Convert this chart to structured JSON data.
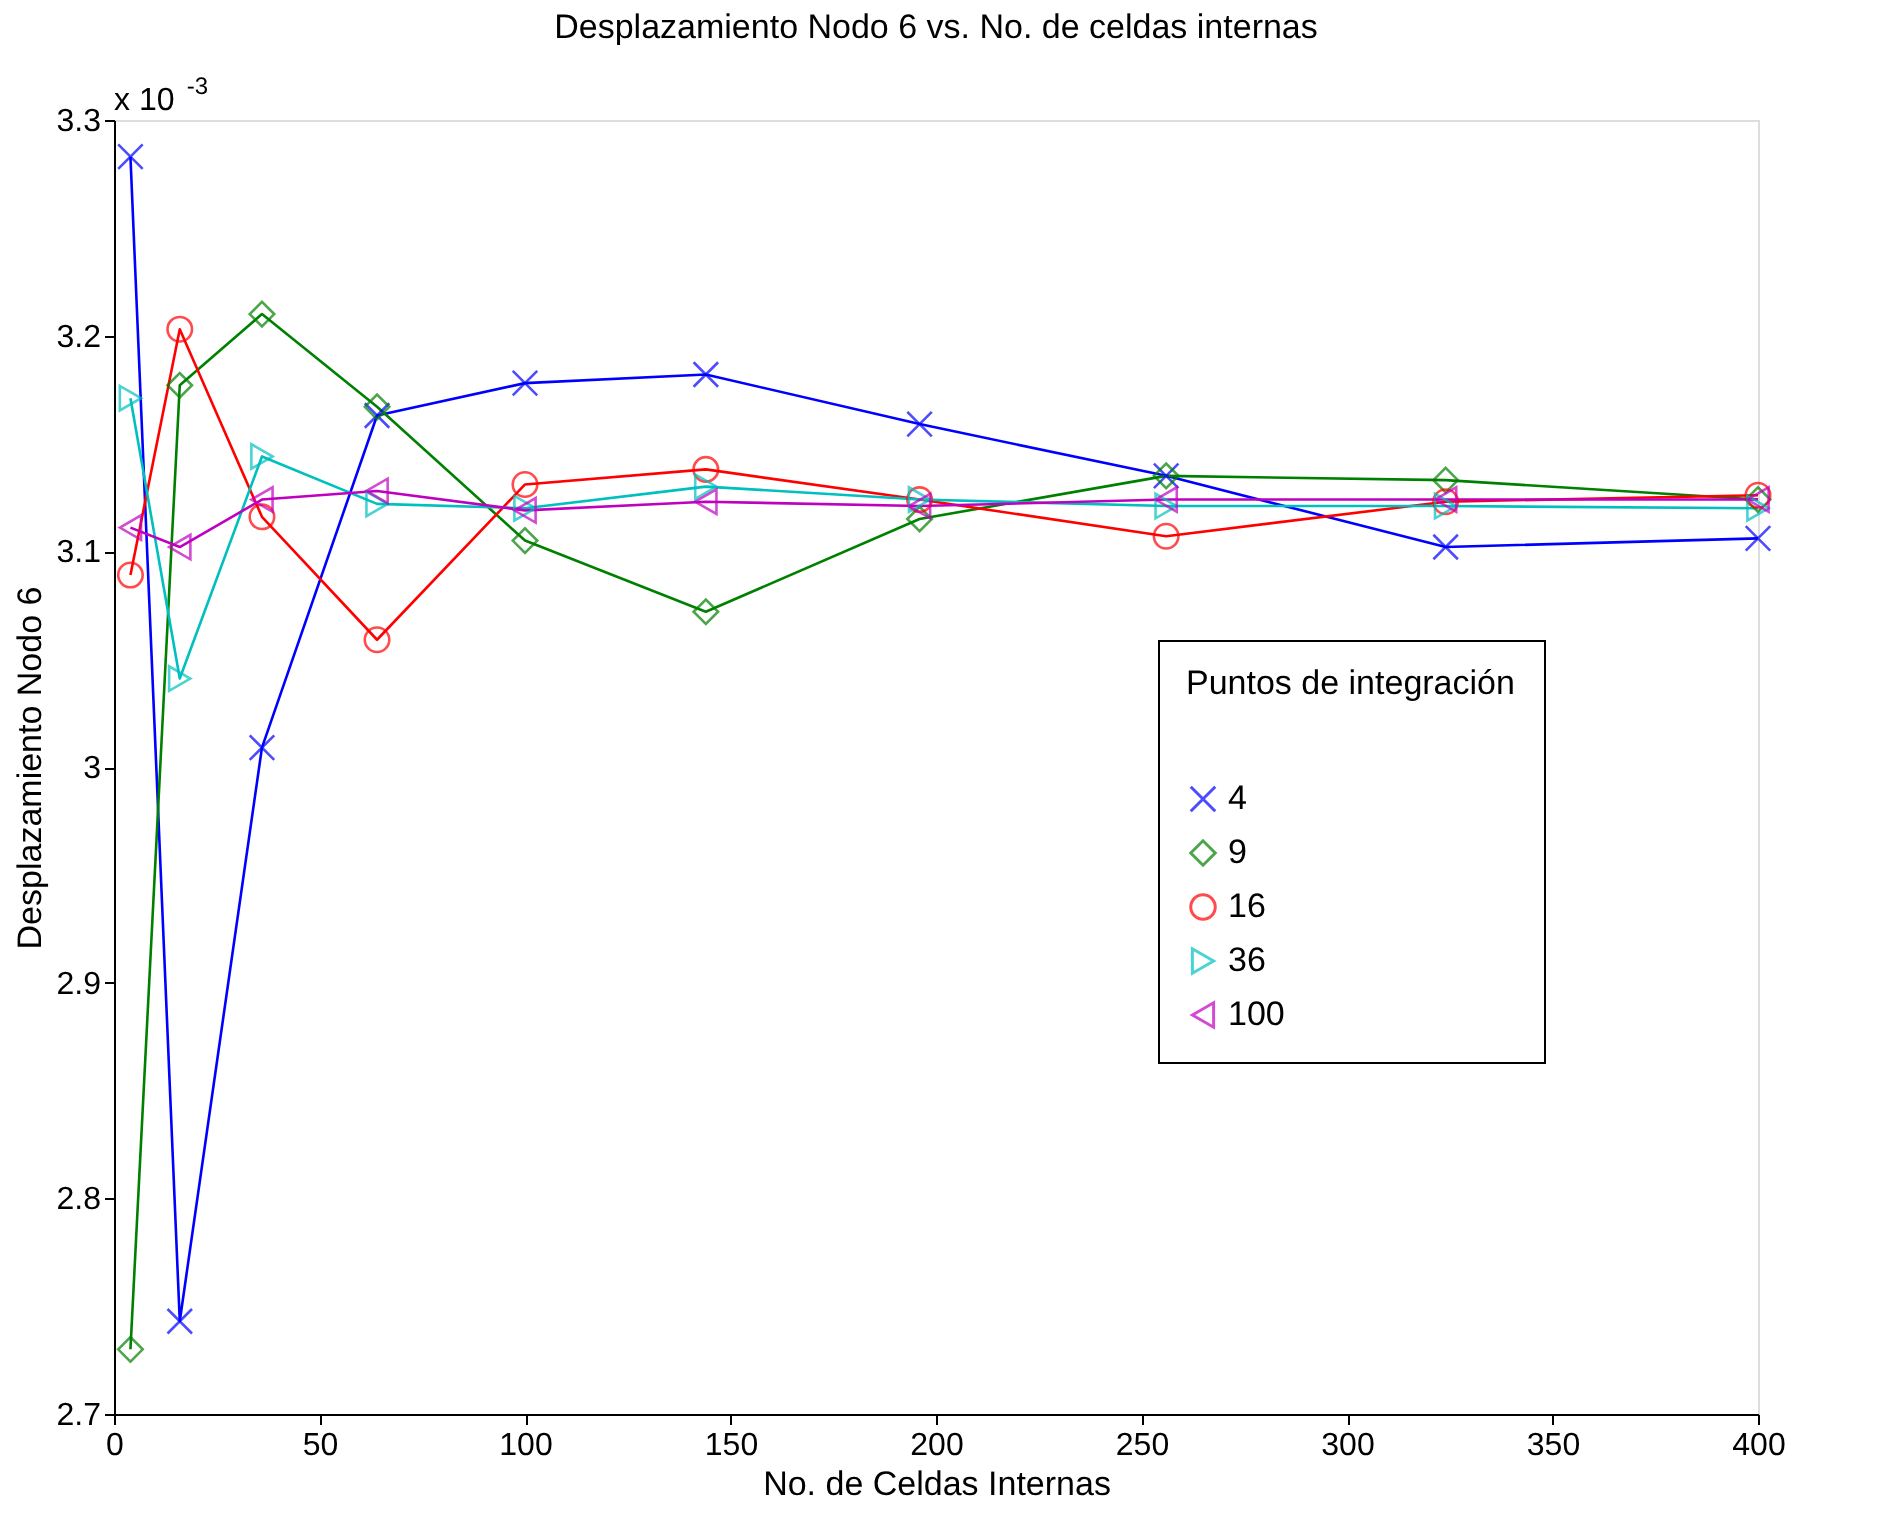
{
  "chart_data": {
    "type": "line",
    "title": "Desplazamiento Nodo 6 vs. No. de celdas internas",
    "xlabel": "No. de Celdas Internas",
    "ylabel": "Desplazamiento Nodo 6",
    "legend_title": "Puntos de integración",
    "annotations": [
      "x 10$^{-3}$"
    ],
    "x": [
      4,
      16,
      36,
      64,
      100,
      144,
      196,
      256,
      324,
      400
    ],
    "series": [
      {
        "name": "4",
        "color": "#0000ff",
        "marker": "cross",
        "values": [
          3.283,
          2.743,
          3.009,
          3.163,
          3.178,
          3.182,
          3.159,
          3.135,
          3.102,
          3.106
        ]
      },
      {
        "name": "9",
        "color": "#008000",
        "marker": "diamond",
        "values": [
          2.73,
          3.177,
          3.21,
          3.167,
          3.105,
          3.072,
          3.115,
          3.135,
          3.133,
          3.124
        ]
      },
      {
        "name": "16",
        "color": "#ff0000",
        "marker": "circle",
        "values": [
          3.089,
          3.203,
          3.116,
          3.059,
          3.131,
          3.138,
          3.124,
          3.107,
          3.123,
          3.126
        ]
      },
      {
        "name": "36",
        "color": "#00bfbf",
        "marker": "triangle-right",
        "values": [
          3.171,
          3.041,
          3.144,
          3.122,
          3.12,
          3.13,
          3.124,
          3.121,
          3.121,
          3.12
        ]
      },
      {
        "name": "100",
        "color": "#bf00bf",
        "marker": "triangle-left",
        "values": [
          3.111,
          3.102,
          3.124,
          3.128,
          3.119,
          3.123,
          3.121,
          3.124,
          3.124,
          3.124
        ]
      }
    ],
    "xlim": [
      0,
      400
    ],
    "xticks": [
      0,
      50,
      100,
      150,
      200,
      250,
      300,
      350,
      400
    ],
    "ylim": [
      2.7,
      3.3
    ],
    "yticks": [
      2.7,
      2.8,
      2.9,
      3,
      3.1,
      3.2,
      3.3
    ],
    "grid": false,
    "legend": "right",
    "line_style": "solid"
  }
}
